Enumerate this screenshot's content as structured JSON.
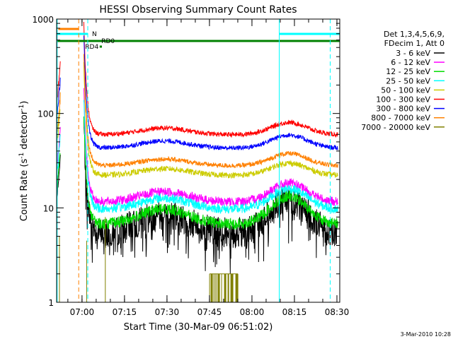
{
  "chart_data": {
    "type": "line",
    "title": "HESSI Observing Summary Count Rates",
    "xlabel": "Start Time (30-Mar-09 06:51:02)",
    "ylabel_main": "Count Rate (s",
    "ylabel_sup1": "-1",
    "ylabel_mid": " detector",
    "ylabel_sup2": "-1",
    "ylabel_end": ")",
    "y_scale": "log",
    "ylim": [
      1,
      1000
    ],
    "xlim": [
      "06:51:02",
      "08:31:00"
    ],
    "x_ticks": [
      "07:00",
      "07:15",
      "07:30",
      "07:45",
      "08:00",
      "08:15",
      "08:30"
    ],
    "y_ticks": [
      "1",
      "10",
      "100",
      "1000"
    ],
    "footer_date": "3-Mar-2010 10:28",
    "legend": {
      "placement": "right",
      "header": [
        "Det 1,3,4,5,6,9,",
        "FDecim 1, Att 0"
      ]
    },
    "series": [
      {
        "name": "3 - 6 keV",
        "color": "#000000"
      },
      {
        "name": "6 - 12 keV",
        "color": "#ff00ff"
      },
      {
        "name": "12 - 25 keV",
        "color": "#00dd00"
      },
      {
        "name": "25 - 50 keV",
        "color": "#00ffff"
      },
      {
        "name": "50 - 100 keV",
        "color": "#cccc00"
      },
      {
        "name": "100 - 300 keV",
        "color": "#ff0000"
      },
      {
        "name": "300 - 800 keV",
        "color": "#0000ff"
      },
      {
        "name": "800 - 7000 keV",
        "color": "#ff8000"
      },
      {
        "name": "7000 - 20000 keV",
        "color": "#808000"
      }
    ],
    "flags": [
      {
        "label": "N",
        "color": "#00ffff"
      },
      {
        "label": "RD0",
        "color": "#008000"
      },
      {
        "label": "RD4",
        "color": "#008000"
      }
    ]
  }
}
